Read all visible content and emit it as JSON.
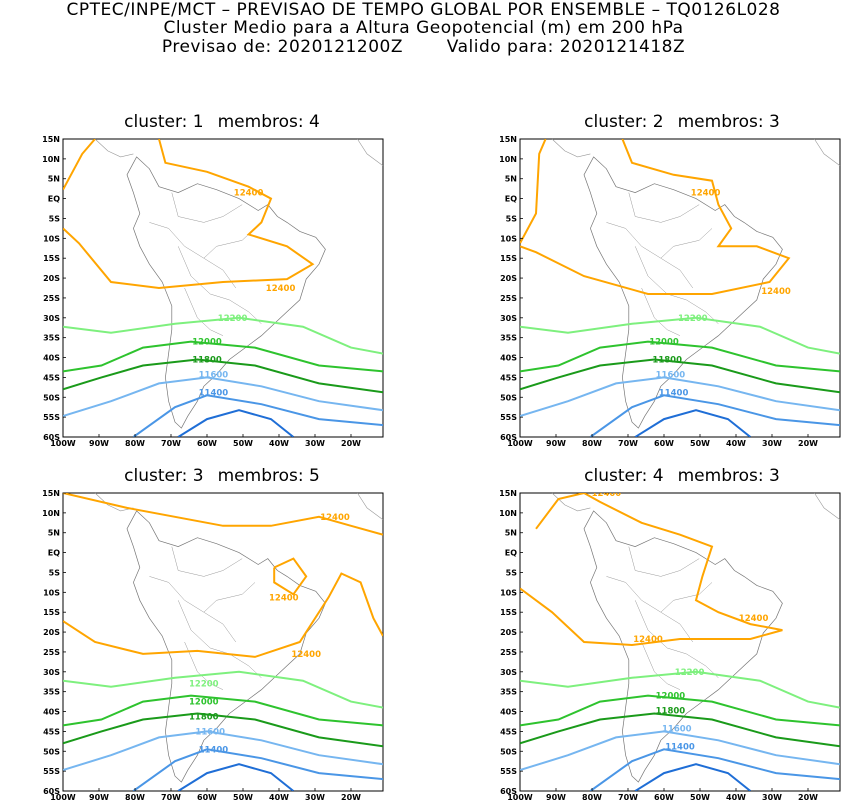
{
  "header": {
    "line1": "CPTEC/INPE/MCT – PREVISAO DE TEMPO GLOBAL POR ENSEMBLE – TQ0126L028",
    "line2": "Cluster Medio para a Altura Geopotencial (m) em 200 hPa",
    "line3_prefix": "Previsao de: 2020121200Z",
    "line3_suffix": "Valido para: 2020121418Z"
  },
  "axes": {
    "lat_ticks": [
      "15N",
      "10N",
      "5N",
      "EQ",
      "5S",
      "10S",
      "15S",
      "20S",
      "25S",
      "30S",
      "35S",
      "40S",
      "45S",
      "50S",
      "55S",
      "60S"
    ],
    "lon_ticks": [
      "100W",
      "90W",
      "80W",
      "70W",
      "60W",
      "50W",
      "40W",
      "30W",
      "20W"
    ]
  },
  "colors": {
    "c12400": "#ffa500",
    "c12200": "#7ef07e",
    "c12000": "#2ec32e",
    "c11800": "#1a9a1a",
    "c11600": "#76b6f0",
    "c11400": "#4a96e6",
    "c11200": "#1f6ed6"
  },
  "panels": [
    {
      "cluster_label": "cluster:",
      "cluster_num": "1",
      "members_label": "membros:",
      "members_num": "4",
      "contour_labels": {
        "l12400a": "12400",
        "l12400b": "12400",
        "l12200": "12200",
        "l12000": "12000",
        "l11800": "11800",
        "l11600": "11600",
        "l11400": "11400"
      }
    },
    {
      "cluster_label": "cluster:",
      "cluster_num": "2",
      "members_label": "membros:",
      "members_num": "3",
      "contour_labels": {
        "l12400a": "12400",
        "l12400b": "12400",
        "l12200": "12200",
        "l12000": "12000",
        "l11800": "11800",
        "l11600": "11600",
        "l11400": "11400"
      }
    },
    {
      "cluster_label": "cluster:",
      "cluster_num": "3",
      "members_label": "membros:",
      "members_num": "5",
      "contour_labels": {
        "l12400a": "12400",
        "l12400b": "12400",
        "l12400c": "12400",
        "l12200": "12200",
        "l12000": "12000",
        "l11800": "11800",
        "l11600": "11600",
        "l11400": "11400"
      }
    },
    {
      "cluster_label": "cluster:",
      "cluster_num": "4",
      "members_label": "membros:",
      "members_num": "3",
      "contour_labels": {
        "l12400a": "12400",
        "l12400b": "12400",
        "l12400c": "12400",
        "l12200": "12200",
        "l12000": "12000",
        "l11800": "11800",
        "l11600": "11600",
        "l11400": "11400"
      }
    }
  ]
}
